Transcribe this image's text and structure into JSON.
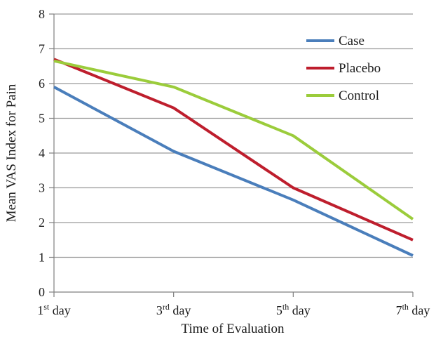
{
  "chart_data": {
    "type": "line",
    "categories": [
      {
        "num": "1",
        "sup": "st",
        "rest": " day"
      },
      {
        "num": "3",
        "sup": "rd",
        "rest": " day"
      },
      {
        "num": "5",
        "sup": "th",
        "rest": " day"
      },
      {
        "num": "7",
        "sup": "th",
        "rest": " day"
      }
    ],
    "series": [
      {
        "name": "Case",
        "color": "#4a7ebb",
        "values": [
          5.9,
          4.05,
          2.65,
          1.05
        ]
      },
      {
        "name": "Placebo",
        "color": "#be1e2d",
        "values": [
          6.7,
          5.3,
          3.0,
          1.5
        ]
      },
      {
        "name": "Control",
        "color": "#9bcc3b",
        "values": [
          6.65,
          5.9,
          4.5,
          2.1
        ]
      }
    ],
    "xlabel": "Time of Evaluation",
    "ylabel": "Mean VAS Index for Pain",
    "ylim": [
      0,
      8
    ],
    "yticks": [
      "0",
      "1",
      "2",
      "3",
      "4",
      "5",
      "6",
      "7",
      "8"
    ],
    "grid": true,
    "legend_position": "top-right",
    "axis_color": "#7f7f7f",
    "grid_color": "#9a9a9a"
  }
}
